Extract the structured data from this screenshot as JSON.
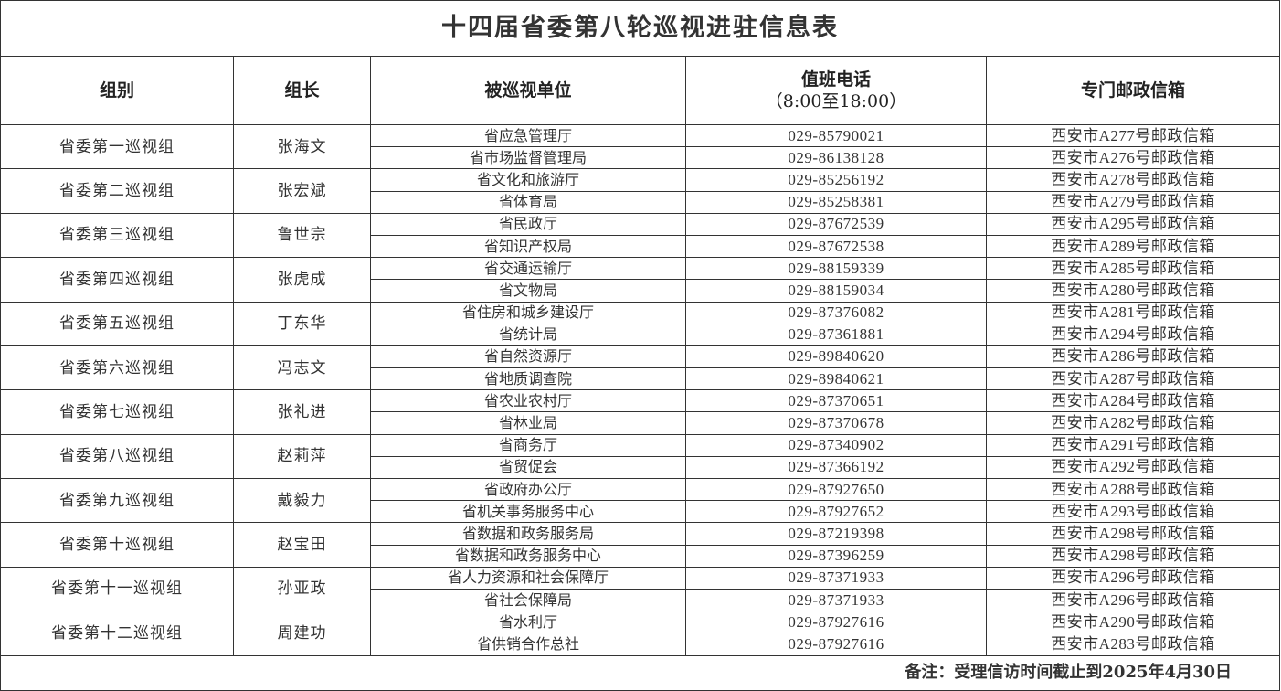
{
  "title": "十四届省委第八轮巡视进驻信息表",
  "headers": {
    "group": "组别",
    "leader": "组长",
    "unit": "被巡视单位",
    "phone_line1": "值班电话",
    "phone_line2": "（8:00至18:00）",
    "mailbox": "专门邮政信箱"
  },
  "groups": [
    {
      "name": "省委第一巡视组",
      "leader": "张海文",
      "units": [
        {
          "unit": "省应急管理厅",
          "phone": "029-85790021",
          "box": "西安市A277号邮政信箱"
        },
        {
          "unit": "省市场监督管理局",
          "phone": "029-86138128",
          "box": "西安市A276号邮政信箱"
        }
      ]
    },
    {
      "name": "省委第二巡视组",
      "leader": "张宏斌",
      "units": [
        {
          "unit": "省文化和旅游厅",
          "phone": "029-85256192",
          "box": "西安市A278号邮政信箱"
        },
        {
          "unit": "省体育局",
          "phone": "029-85258381",
          "box": "西安市A279号邮政信箱"
        }
      ]
    },
    {
      "name": "省委第三巡视组",
      "leader": "鲁世宗",
      "units": [
        {
          "unit": "省民政厅",
          "phone": "029-87672539",
          "box": "西安市A295号邮政信箱"
        },
        {
          "unit": "省知识产权局",
          "phone": "029-87672538",
          "box": "西安市A289号邮政信箱"
        }
      ]
    },
    {
      "name": "省委第四巡视组",
      "leader": "张虎成",
      "units": [
        {
          "unit": "省交通运输厅",
          "phone": "029-88159339",
          "box": "西安市A285号邮政信箱"
        },
        {
          "unit": "省文物局",
          "phone": "029-88159034",
          "box": "西安市A280号邮政信箱"
        }
      ]
    },
    {
      "name": "省委第五巡视组",
      "leader": "丁东华",
      "units": [
        {
          "unit": "省住房和城乡建设厅",
          "phone": "029-87376082",
          "box": "西安市A281号邮政信箱"
        },
        {
          "unit": "省统计局",
          "phone": "029-87361881",
          "box": "西安市A294号邮政信箱"
        }
      ]
    },
    {
      "name": "省委第六巡视组",
      "leader": "冯志文",
      "units": [
        {
          "unit": "省自然资源厅",
          "phone": "029-89840620",
          "box": "西安市A286号邮政信箱"
        },
        {
          "unit": "省地质调查院",
          "phone": "029-89840621",
          "box": "西安市A287号邮政信箱"
        }
      ]
    },
    {
      "name": "省委第七巡视组",
      "leader": "张礼进",
      "units": [
        {
          "unit": "省农业农村厅",
          "phone": "029-87370651",
          "box": "西安市A284号邮政信箱"
        },
        {
          "unit": "省林业局",
          "phone": "029-87370678",
          "box": "西安市A282号邮政信箱"
        }
      ]
    },
    {
      "name": "省委第八巡视组",
      "leader": "赵莉萍",
      "units": [
        {
          "unit": "省商务厅",
          "phone": "029-87340902",
          "box": "西安市A291号邮政信箱"
        },
        {
          "unit": "省贸促会",
          "phone": "029-87366192",
          "box": "西安市A292号邮政信箱"
        }
      ]
    },
    {
      "name": "省委第九巡视组",
      "leader": "戴毅力",
      "units": [
        {
          "unit": "省政府办公厅",
          "phone": "029-87927650",
          "box": "西安市A288号邮政信箱"
        },
        {
          "unit": "省机关事务服务中心",
          "phone": "029-87927652",
          "box": "西安市A293号邮政信箱"
        }
      ]
    },
    {
      "name": "省委第十巡视组",
      "leader": "赵宝田",
      "units": [
        {
          "unit": "省数据和政务服务局",
          "phone": "029-87219398",
          "box": "西安市A298号邮政信箱"
        },
        {
          "unit": "省数据和政务服务中心",
          "phone": "029-87396259",
          "box": "西安市A298号邮政信箱"
        }
      ]
    },
    {
      "name": "省委第十一巡视组",
      "leader": "孙亚政",
      "units": [
        {
          "unit": "省人力资源和社会保障厅",
          "phone": "029-87371933",
          "box": "西安市A296号邮政信箱"
        },
        {
          "unit": "省社会保障局",
          "phone": "029-87371933",
          "box": "西安市A296号邮政信箱"
        }
      ]
    },
    {
      "name": "省委第十二巡视组",
      "leader": "周建功",
      "units": [
        {
          "unit": "省水利厅",
          "phone": "029-87927616",
          "box": "西安市A290号邮政信箱"
        },
        {
          "unit": "省供销合作总社",
          "phone": "029-87927616",
          "box": "西安市A283号邮政信箱"
        }
      ]
    }
  ],
  "footer_note": "备注：受理信访时间截止到2025年4月30日"
}
